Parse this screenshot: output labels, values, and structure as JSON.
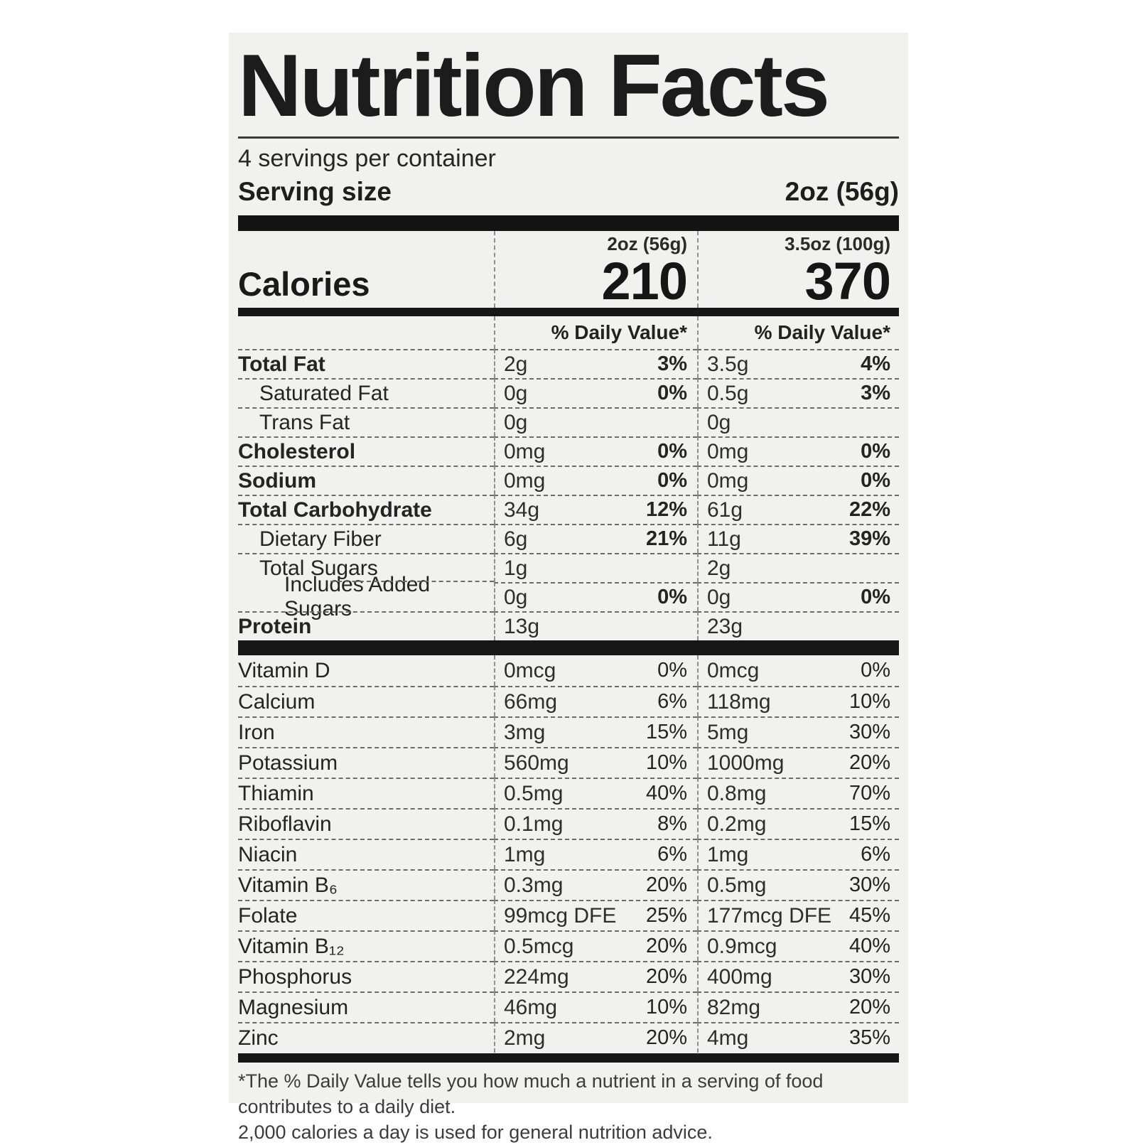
{
  "colors": {
    "page_bg": "#ffffff",
    "card_bg": "#f1f1ef",
    "text": "#222222",
    "bar": "#171717"
  },
  "label": {
    "title": "Nutrition Facts",
    "servings_per_container": "4 servings per container",
    "serving_size_label": "Serving size",
    "serving_size_value": "2oz (56g)",
    "calories_label": "Calories",
    "daily_value_header": "% Daily Value*",
    "columns": [
      {
        "header": "2oz (56g)",
        "calories": "210"
      },
      {
        "header": "3.5oz (100g)",
        "calories": "370"
      }
    ],
    "nutrients": [
      {
        "name": "Total Fat",
        "bold": true,
        "indent": 0,
        "values": [
          {
            "amount": "2g",
            "dv": "3%"
          },
          {
            "amount": "3.5g",
            "dv": "4%"
          }
        ]
      },
      {
        "name": "Saturated Fat",
        "bold": false,
        "indent": 30,
        "values": [
          {
            "amount": "0g",
            "dv": "0%"
          },
          {
            "amount": "0.5g",
            "dv": "3%"
          }
        ]
      },
      {
        "name": "Trans Fat",
        "bold": false,
        "indent": 30,
        "values": [
          {
            "amount": "0g",
            "dv": ""
          },
          {
            "amount": "0g",
            "dv": ""
          }
        ]
      },
      {
        "name": "Cholesterol",
        "bold": true,
        "indent": 0,
        "values": [
          {
            "amount": "0mg",
            "dv": "0%"
          },
          {
            "amount": "0mg",
            "dv": "0%"
          }
        ]
      },
      {
        "name": "Sodium",
        "bold": true,
        "indent": 0,
        "values": [
          {
            "amount": "0mg",
            "dv": "0%"
          },
          {
            "amount": "0mg",
            "dv": "0%"
          }
        ]
      },
      {
        "name": "Total Carbohydrate",
        "bold": true,
        "indent": 0,
        "values": [
          {
            "amount": "34g",
            "dv": "12%"
          },
          {
            "amount": "61g",
            "dv": "22%"
          }
        ]
      },
      {
        "name": "Dietary Fiber",
        "bold": false,
        "indent": 30,
        "values": [
          {
            "amount": "6g",
            "dv": "21%"
          },
          {
            "amount": "11g",
            "dv": "39%"
          }
        ]
      },
      {
        "name": "Total Sugars",
        "bold": false,
        "indent": 30,
        "values": [
          {
            "amount": "1g",
            "dv": ""
          },
          {
            "amount": "2g",
            "dv": ""
          }
        ]
      },
      {
        "name": "Includes Added Sugars",
        "bold": false,
        "indent": 65,
        "sep_indent": 130,
        "values": [
          {
            "amount": "0g",
            "dv": "0%"
          },
          {
            "amount": "0g",
            "dv": "0%"
          }
        ]
      },
      {
        "name": "Protein",
        "bold": true,
        "indent": 0,
        "values": [
          {
            "amount": "13g",
            "dv": ""
          },
          {
            "amount": "23g",
            "dv": ""
          }
        ]
      }
    ],
    "vitamins": [
      {
        "name": "Vitamin D",
        "values": [
          {
            "amount": "0mcg",
            "dv": "0%"
          },
          {
            "amount": "0mcg",
            "dv": "0%"
          }
        ]
      },
      {
        "name": "Calcium",
        "values": [
          {
            "amount": "66mg",
            "dv": "6%"
          },
          {
            "amount": "118mg",
            "dv": "10%"
          }
        ]
      },
      {
        "name": "Iron",
        "values": [
          {
            "amount": "3mg",
            "dv": "15%"
          },
          {
            "amount": "5mg",
            "dv": "30%"
          }
        ]
      },
      {
        "name": "Potassium",
        "values": [
          {
            "amount": "560mg",
            "dv": "10%"
          },
          {
            "amount": "1000mg",
            "dv": "20%"
          }
        ]
      },
      {
        "name": "Thiamin",
        "values": [
          {
            "amount": "0.5mg",
            "dv": "40%"
          },
          {
            "amount": "0.8mg",
            "dv": "70%"
          }
        ]
      },
      {
        "name": "Riboflavin",
        "values": [
          {
            "amount": "0.1mg",
            "dv": "8%"
          },
          {
            "amount": "0.2mg",
            "dv": "15%"
          }
        ]
      },
      {
        "name": "Niacin",
        "values": [
          {
            "amount": "1mg",
            "dv": "6%"
          },
          {
            "amount": "1mg",
            "dv": "6%"
          }
        ]
      },
      {
        "name": "Vitamin B₆",
        "values": [
          {
            "amount": "0.3mg",
            "dv": "20%"
          },
          {
            "amount": "0.5mg",
            "dv": "30%"
          }
        ]
      },
      {
        "name": "Folate",
        "values": [
          {
            "amount": "99mcg DFE",
            "dv": "25%"
          },
          {
            "amount": "177mcg DFE",
            "dv": "45%"
          }
        ]
      },
      {
        "name": "Vitamin B₁₂",
        "values": [
          {
            "amount": "0.5mcg",
            "dv": "20%"
          },
          {
            "amount": "0.9mcg",
            "dv": "40%"
          }
        ]
      },
      {
        "name": "Phosphorus",
        "values": [
          {
            "amount": "224mg",
            "dv": "20%"
          },
          {
            "amount": "400mg",
            "dv": "30%"
          }
        ]
      },
      {
        "name": "Magnesium",
        "values": [
          {
            "amount": "46mg",
            "dv": "10%"
          },
          {
            "amount": "82mg",
            "dv": "20%"
          }
        ]
      },
      {
        "name": "Zinc",
        "values": [
          {
            "amount": "2mg",
            "dv": "20%"
          },
          {
            "amount": "4mg",
            "dv": "35%"
          }
        ]
      }
    ],
    "footnote_line1": "*The % Daily Value tells you how much a nutrient in a serving of food contributes to a daily diet.",
    "footnote_line2": "2,000 calories a day is used for general nutrition advice."
  }
}
